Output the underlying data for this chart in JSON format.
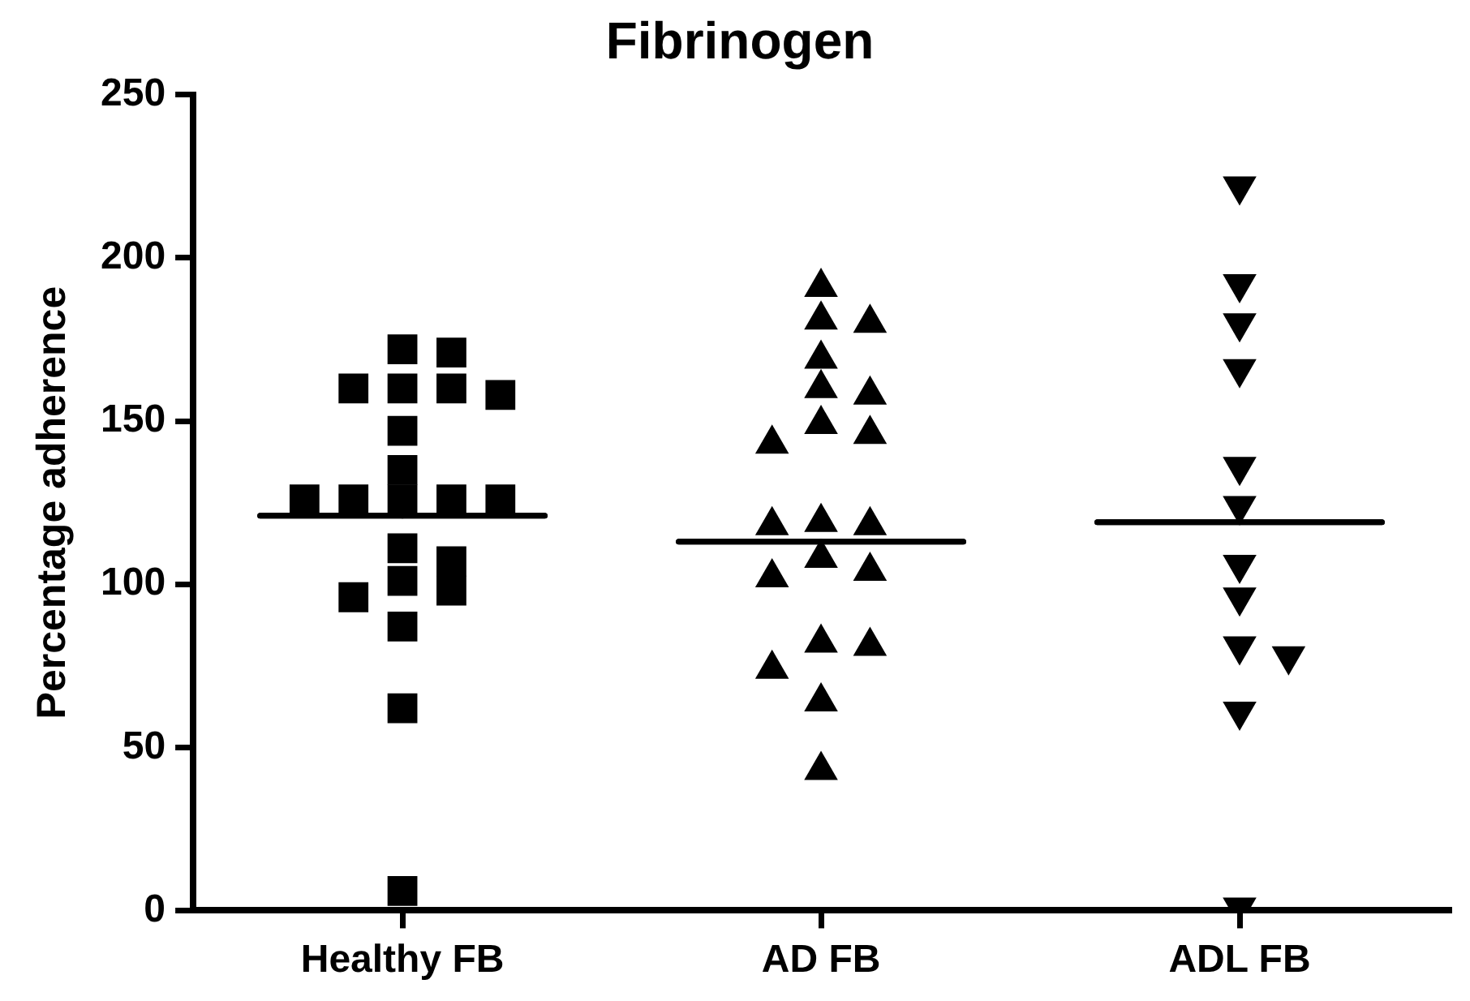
{
  "chart_data": {
    "type": "scatter",
    "title": "Fibrinogen",
    "ylabel": "Percentage adherence",
    "categories": [
      "Healthy FB",
      "AD FB",
      "ADL FB"
    ],
    "ylim": [
      0,
      250
    ],
    "yticks": [
      0,
      50,
      100,
      150,
      200,
      250
    ],
    "grid": false,
    "legend": false,
    "series": [
      {
        "marker": "square",
        "color": "#000000",
        "x": [
          "Healthy FB",
          "Healthy FB",
          "Healthy FB",
          "Healthy FB",
          "Healthy FB",
          "Healthy FB",
          "Healthy FB",
          "Healthy FB",
          "Healthy FB",
          "Healthy FB",
          "Healthy FB",
          "Healthy FB",
          "Healthy FB",
          "Healthy FB",
          "Healthy FB",
          "Healthy FB",
          "Healthy FB",
          "Healthy FB",
          "Healthy FB",
          "Healthy FB",
          "Healthy FB"
        ],
        "values": [
          160,
          126,
          158,
          126,
          111,
          98,
          171,
          147,
          126,
          107,
          87,
          62,
          6,
          135,
          172,
          160,
          126,
          96,
          160,
          126,
          101
        ]
      },
      {
        "marker": "triangle",
        "color": "#000000",
        "x": [
          "AD FB",
          "AD FB",
          "AD FB",
          "AD FB",
          "AD FB",
          "AD FB",
          "AD FB",
          "AD FB",
          "AD FB",
          "AD FB",
          "AD FB",
          "AD FB",
          "AD FB",
          "AD FB",
          "AD FB",
          "AD FB",
          "AD FB",
          "AD FB",
          "AD FB",
          "AD FB"
        ],
        "values": [
          191,
          169,
          149,
          119,
          108,
          82,
          180,
          160,
          143,
          118,
          102,
          81,
          64,
          43,
          181,
          146,
          104,
          74,
          158,
          118
        ]
      },
      {
        "marker": "triangle-down",
        "color": "#000000",
        "x": [
          "ADL FB",
          "ADL FB",
          "ADL FB",
          "ADL FB",
          "ADL FB",
          "ADL FB",
          "ADL FB",
          "ADL FB",
          "ADL FB",
          "ADL FB",
          "ADL FB",
          "ADL FB"
        ],
        "values": [
          180,
          106,
          222,
          192,
          166,
          124,
          96,
          78,
          61,
          1,
          136,
          81
        ]
      },
      {
        "type": "box",
        "color": "#000000",
        "boxes": [
          {
            "low": 121,
            "q1": 121,
            "median": 121,
            "q3": 121,
            "high": 121
          },
          {
            "low": 113,
            "q1": 113,
            "median": 113,
            "q3": 113,
            "high": 113
          },
          {
            "low": 119,
            "q1": 119,
            "median": 119,
            "q3": 119,
            "high": 119
          }
        ]
      }
    ]
  }
}
